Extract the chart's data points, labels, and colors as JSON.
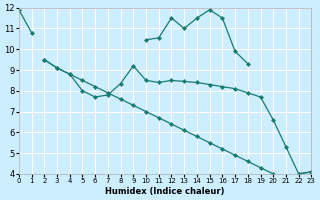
{
  "xlabel": "Humidex (Indice chaleur)",
  "bg_color": "#cceeff",
  "grid_color": "#ffffff",
  "line_color": "#1a7a6e",
  "line1_x": [
    0,
    1,
    2,
    3,
    4,
    5,
    6,
    7,
    8,
    9,
    10,
    11,
    12,
    13,
    14,
    15,
    16,
    17,
    18,
    19,
    20,
    21,
    22,
    23
  ],
  "line1_y": [
    11.9,
    10.8,
    null,
    null,
    null,
    null,
    null,
    null,
    null,
    null,
    10.45,
    10.55,
    11.5,
    11.0,
    11.5,
    11.9,
    11.5,
    9.9,
    9.3,
    null,
    null,
    null,
    4.0,
    4.1
  ],
  "line2_x": [
    2,
    3,
    4,
    5,
    6,
    7,
    8,
    9,
    10,
    11,
    12,
    13,
    14,
    15,
    16,
    17,
    18,
    19,
    20,
    21,
    22,
    23
  ],
  "line2_y": [
    9.5,
    9.1,
    8.8,
    8.0,
    7.7,
    7.8,
    8.35,
    9.2,
    8.5,
    8.4,
    8.5,
    8.45,
    8.4,
    8.3,
    8.2,
    8.1,
    7.9,
    7.7,
    6.6,
    5.3,
    4.0,
    4.1
  ],
  "line3_x": [
    2,
    3,
    4,
    5,
    6,
    7,
    8,
    9,
    10,
    11,
    12,
    13,
    14,
    15,
    16,
    17,
    18,
    19,
    20
  ],
  "line3_y": [
    9.5,
    9.1,
    8.8,
    8.5,
    8.2,
    7.9,
    7.6,
    7.3,
    7.0,
    6.7,
    6.4,
    6.1,
    5.8,
    5.5,
    5.2,
    4.9,
    4.6,
    4.3,
    4.0
  ],
  "xlim": [
    0,
    23
  ],
  "ylim": [
    4,
    12
  ],
  "yticks": [
    4,
    5,
    6,
    7,
    8,
    9,
    10,
    11,
    12
  ],
  "xticks": [
    0,
    1,
    2,
    3,
    4,
    5,
    6,
    7,
    8,
    9,
    10,
    11,
    12,
    13,
    14,
    15,
    16,
    17,
    18,
    19,
    20,
    21,
    22,
    23
  ]
}
